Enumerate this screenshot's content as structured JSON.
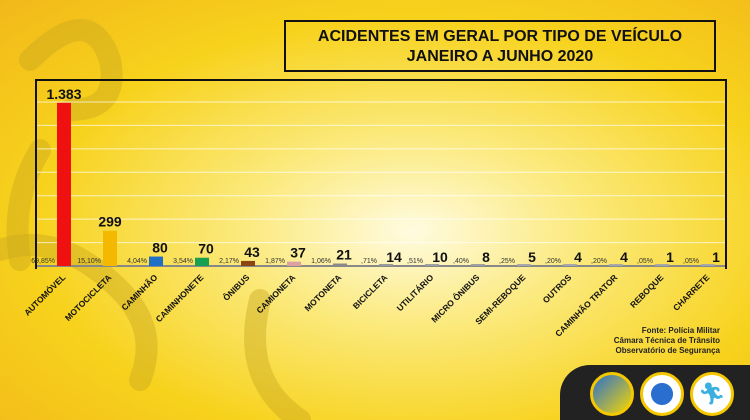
{
  "title": {
    "line1": "ACIDENTES EM GERAL POR TIPO DE VEÍCULO",
    "line2": "JANEIRO A JUNHO 2020"
  },
  "source": {
    "line1": "Fonte: Polícia Militar",
    "line2": "Câmara Técnica de Trânsito",
    "line3": "Observatório de Segurança"
  },
  "logos": [
    "observatorio-logo",
    "city-coat-of-arms-logo",
    "pvt-foz-logo"
  ],
  "chart_data": {
    "type": "bar",
    "title": "ACIDENTES EM GERAL POR TIPO DE VEÍCULO JANEIRO A JUNHO 2020",
    "categories": [
      "AUTOMÓVEL",
      "MOTOCICLETA",
      "CAMINHÃO",
      "CAMINHONETE",
      "ÔNIBUS",
      "CAMIONETA",
      "MOTONETA",
      "BICICLETA",
      "UTILITÁRIO",
      "MICRO ÔNIBUS",
      "SEMI-REBOQUE",
      "OUTROS",
      "CAMINHÃO TRATOR",
      "REBOQUE",
      "CHARRETE"
    ],
    "values": [
      1383,
      299,
      80,
      70,
      43,
      37,
      21,
      14,
      10,
      8,
      5,
      4,
      4,
      1,
      1
    ],
    "value_labels": [
      "1.383",
      "299",
      "80",
      "70",
      "43",
      "37",
      "21",
      "14",
      "10",
      "8",
      "5",
      "4",
      "4",
      "1",
      "1"
    ],
    "percent_labels": [
      "69,85%",
      "15,10%",
      "4,04%",
      "3,54%",
      "2,17%",
      "1,87%",
      "1,06%",
      ",71%",
      ",51%",
      ",40%",
      ",25%",
      ",20%",
      ",20%",
      ",05%",
      ",05%"
    ],
    "colors": [
      "#f01010",
      "#f5b800",
      "#1f6fc5",
      "#18a050",
      "#8b4513",
      "#dba0a0",
      "#8a8a8a",
      "#9a9a9a",
      "#a0a0a0",
      "#a0a0a0",
      "#a8a8a8",
      "#a8a8a8",
      "#a8a8a8",
      "#a8a8a8",
      "#a8a8a8"
    ],
    "ylim": [
      0,
      1400
    ],
    "grid": true,
    "legend": "none"
  }
}
